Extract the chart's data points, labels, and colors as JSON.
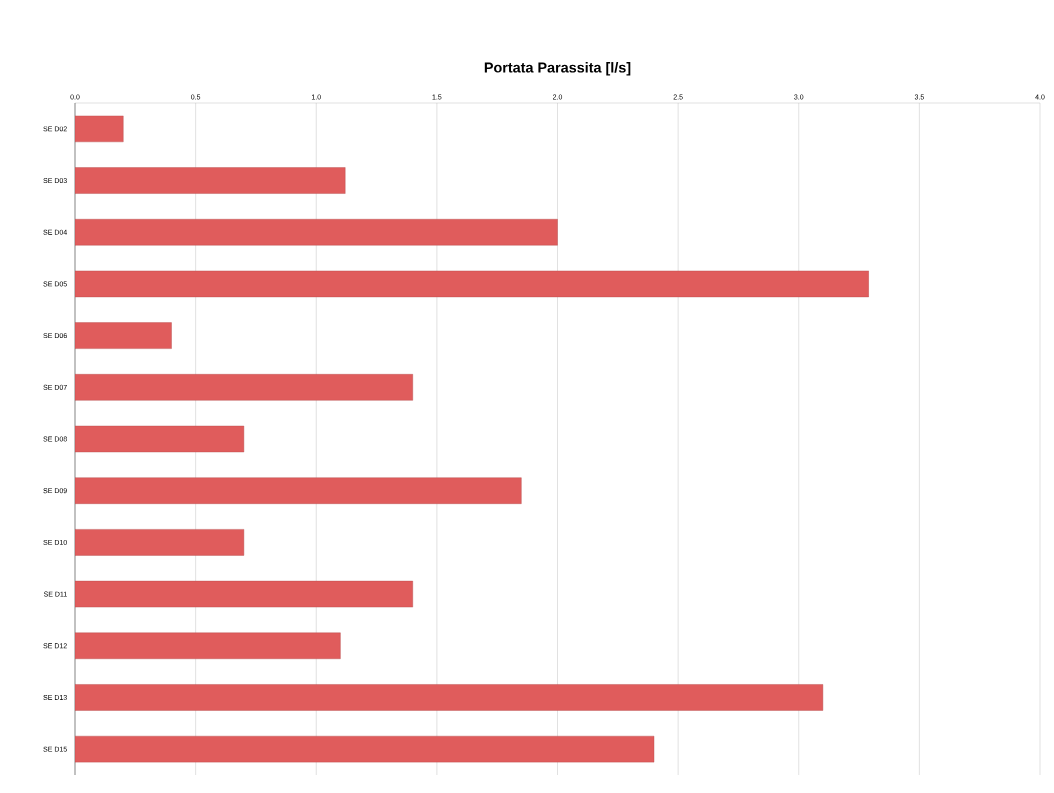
{
  "chart_data": {
    "type": "bar",
    "orientation": "horizontal",
    "title": "Portata Parassita [l/s]",
    "categories": [
      "SE D02",
      "SE D03",
      "SE D04",
      "SE D05",
      "SE D06",
      "SE D07",
      "SE D08",
      "SE D09",
      "SE D10",
      "SE D11",
      "SE D12",
      "SE D13",
      "SE D15"
    ],
    "values": [
      0.2,
      1.12,
      2.0,
      3.29,
      0.4,
      1.4,
      0.7,
      1.85,
      0.7,
      1.4,
      1.1,
      3.1,
      2.4
    ],
    "color": "#e05c5c",
    "xlim": [
      0,
      4
    ],
    "xticks": [
      {
        "value": 0,
        "label": "0.0"
      },
      {
        "value": 0.5,
        "label": "0.5"
      },
      {
        "value": 1,
        "label": "1.0"
      },
      {
        "value": 1.5,
        "label": "1.5"
      },
      {
        "value": 2,
        "label": "2.0"
      },
      {
        "value": 2.5,
        "label": "2.5"
      },
      {
        "value": 3,
        "label": "3.0"
      },
      {
        "value": 3.5,
        "label": "3.5"
      },
      {
        "value": 4,
        "label": "4.0"
      }
    ],
    "grid": "x"
  }
}
